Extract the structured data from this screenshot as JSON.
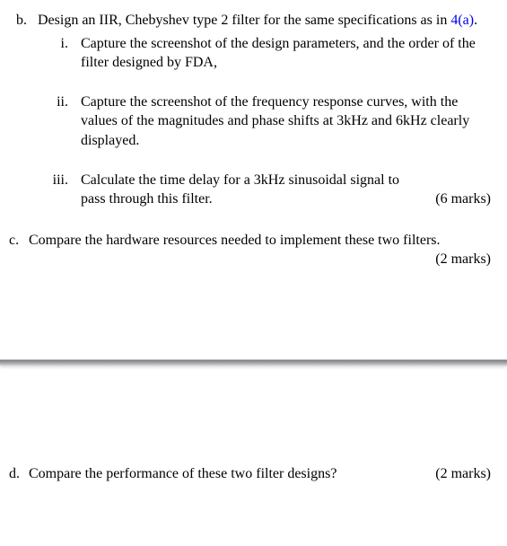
{
  "b": {
    "marker": "b.",
    "text_before_ref": "Design an IIR, Chebyshev type 2 filter for the same specifications as in ",
    "ref": "4(a)",
    "text_after_ref": ".",
    "subs": {
      "i": {
        "marker": "i.",
        "text": "Capture the screenshot of the design parameters, and the order of the filter designed by FDA,"
      },
      "ii": {
        "marker": "ii.",
        "text": "Capture the screenshot of the frequency response curves, with the values of the magnitudes and phase shifts at 3kHz and 6kHz clearly displayed."
      },
      "iii": {
        "marker": "iii.",
        "text": "Calculate the time delay for a 3kHz sinusoidal signal to pass through this filter.",
        "marks": "(6 marks)"
      }
    }
  },
  "c": {
    "marker": "c.",
    "text": "Compare the hardware resources needed to implement these two filters.",
    "marks": "(2 marks)"
  },
  "d": {
    "marker": "d.",
    "text": "Compare the performance of these two filter designs?",
    "marks": "(2 marks)"
  }
}
